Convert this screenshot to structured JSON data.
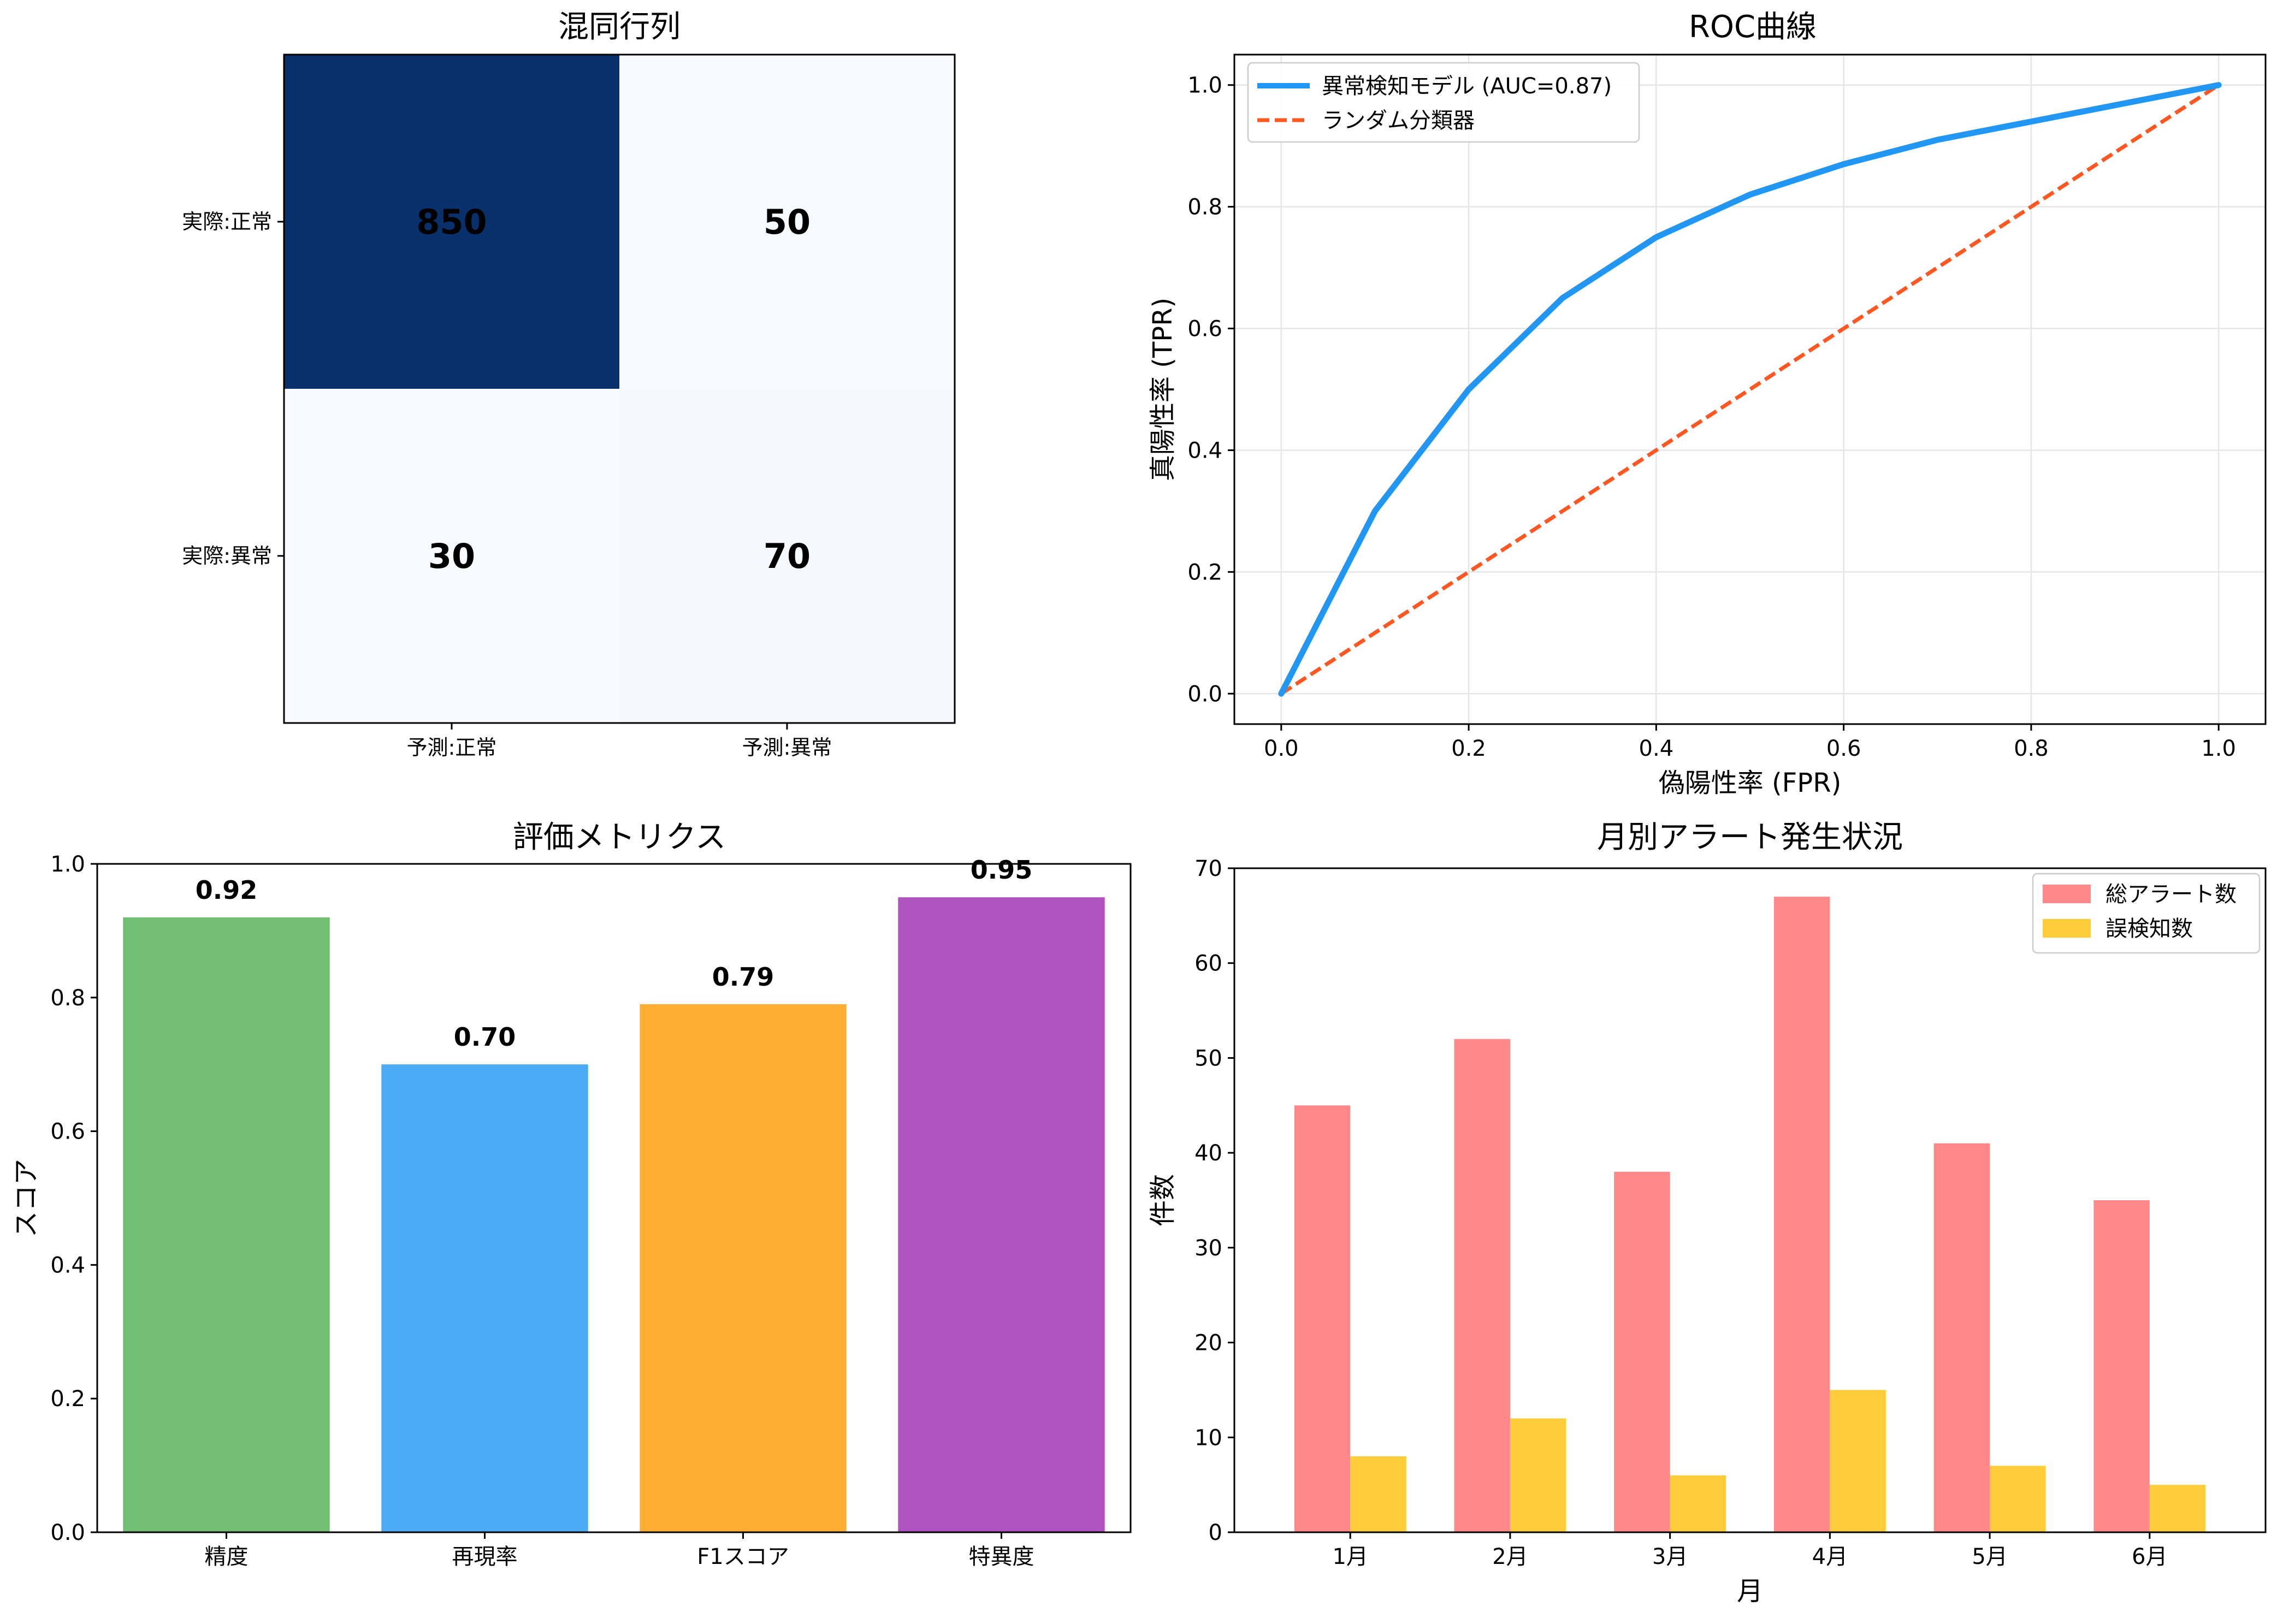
{
  "charts": [
    {
      "type": "heatmap",
      "title": "混同行列",
      "row_labels": [
        "実際:正常",
        "実際:異常"
      ],
      "col_labels": [
        "予測:正常",
        "予測:異常"
      ],
      "values": [
        [
          850,
          50
        ],
        [
          30,
          70
        ]
      ],
      "colormap": "Blues"
    },
    {
      "type": "line",
      "title": "ROC曲線",
      "xlabel": "偽陽性率 (FPR)",
      "ylabel": "真陽性率 (TPR)",
      "xlim": [
        -0.05,
        1.05
      ],
      "ylim": [
        -0.05,
        1.05
      ],
      "xticks": [
        0.0,
        0.2,
        0.4,
        0.6,
        0.8,
        1.0
      ],
      "yticks": [
        0.0,
        0.2,
        0.4,
        0.6,
        0.8,
        1.0
      ],
      "grid": true,
      "legend_position": "top-left",
      "series": [
        {
          "name": "異常検知モデル (AUC=0.87)",
          "color": "#2196f3",
          "style": "solid",
          "x": [
            0.0,
            0.1,
            0.2,
            0.3,
            0.4,
            0.5,
            0.6,
            0.7,
            0.8,
            0.9,
            1.0
          ],
          "y": [
            0.0,
            0.3,
            0.5,
            0.65,
            0.75,
            0.82,
            0.87,
            0.91,
            0.94,
            0.97,
            1.0
          ]
        },
        {
          "name": "ランダム分類器",
          "color": "#ff5722",
          "style": "dashed",
          "x": [
            0.0,
            1.0
          ],
          "y": [
            0.0,
            1.0
          ]
        }
      ]
    },
    {
      "type": "bar",
      "title": "評価メトリクス",
      "xlabel": "",
      "ylabel": "スコア",
      "categories": [
        "精度",
        "再現率",
        "F1スコア",
        "特異度"
      ],
      "values": [
        0.92,
        0.7,
        0.79,
        0.95
      ],
      "value_labels": [
        "0.92",
        "0.70",
        "0.79",
        "0.95"
      ],
      "colors": [
        "#4caf50",
        "#2196f3",
        "#ff9800",
        "#9c27b0"
      ],
      "ylim": [
        0,
        1.0
      ],
      "yticks": [
        0.0,
        0.2,
        0.4,
        0.6,
        0.8,
        1.0
      ]
    },
    {
      "type": "bar",
      "title": "月別アラート発生状況",
      "xlabel": "月",
      "ylabel": "件数",
      "categories": [
        "1月",
        "2月",
        "3月",
        "4月",
        "5月",
        "6月"
      ],
      "series": [
        {
          "name": "総アラート数",
          "color": "#ff6b6b",
          "values": [
            45,
            52,
            38,
            67,
            41,
            35
          ]
        },
        {
          "name": "誤検知数",
          "color": "#ffc107",
          "values": [
            8,
            12,
            6,
            15,
            7,
            5
          ]
        }
      ],
      "ylim": [
        0,
        70
      ],
      "yticks": [
        0,
        10,
        20,
        30,
        40,
        50,
        60,
        70
      ],
      "legend_position": "top-right"
    }
  ]
}
